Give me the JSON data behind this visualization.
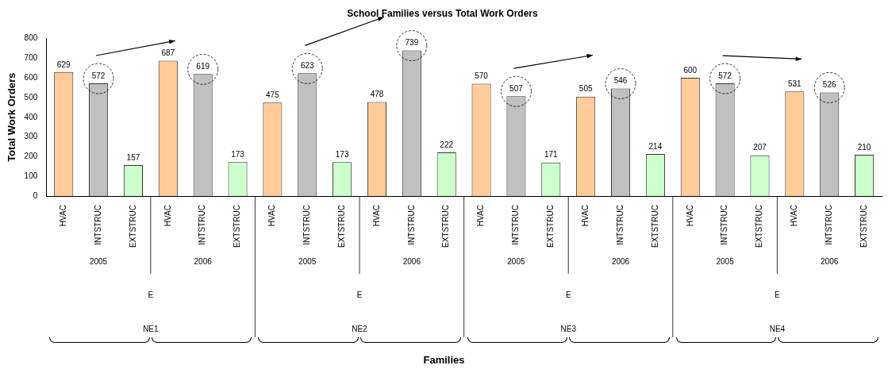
{
  "chart_data": {
    "type": "bar",
    "title": "School Families versus Total Work Orders",
    "ylabel": "Total Work Orders",
    "categories": [
      "HVAC",
      "INTSTRUC",
      "EXTSTRUC",
      "HVAC",
      "INTSTRUC",
      "EXTSTRUC",
      "HVAC",
      "INTSTRUC",
      "EXTSTRUC",
      "HVAC",
      "INTSTRUC",
      "EXTSTRUC",
      "HVAC",
      "INTSTRUC",
      "EXTSTRUC",
      "HVAC",
      "INTSTRUC",
      "EXTSTRUC",
      "HVAC",
      "INTSTRUC",
      "EXTSTRUC",
      "HVAC",
      "INTSTRUC",
      "EXTSTRUC"
    ],
    "values": [
      629,
      572,
      157,
      687,
      619,
      173,
      475,
      623,
      173,
      478,
      739,
      222,
      570,
      507,
      171,
      505,
      546,
      214,
      600,
      572,
      207,
      531,
      526,
      210
    ],
    "colors": [
      "#ffcc99",
      "#c0c0c0",
      "#ccffcc",
      "#ffcc99",
      "#c0c0c0",
      "#ccffcc",
      "#ffcc99",
      "#c0c0c0",
      "#ccffcc",
      "#ffcc99",
      "#c0c0c0",
      "#ccffcc",
      "#ffcc99",
      "#c0c0c0",
      "#ccffcc",
      "#ffcc99",
      "#c0c0c0",
      "#ccffcc",
      "#ffcc99",
      "#c0c0c0",
      "#ccffcc",
      "#ffcc99",
      "#c0c0c0",
      "#ccffcc"
    ],
    "ylim": [
      0,
      800
    ],
    "yticks": [
      0,
      100,
      200,
      300,
      400,
      500,
      600,
      700,
      800
    ],
    "grid": false,
    "legend": false,
    "data_labels": true,
    "annotations": [
      "2005",
      "2006",
      "2005",
      "2006",
      "2005",
      "2006",
      "2005",
      "2006",
      "E",
      "E",
      "E",
      "E",
      "NE1",
      "NE2",
      "NE3",
      "NE4",
      "Families"
    ]
  }
}
